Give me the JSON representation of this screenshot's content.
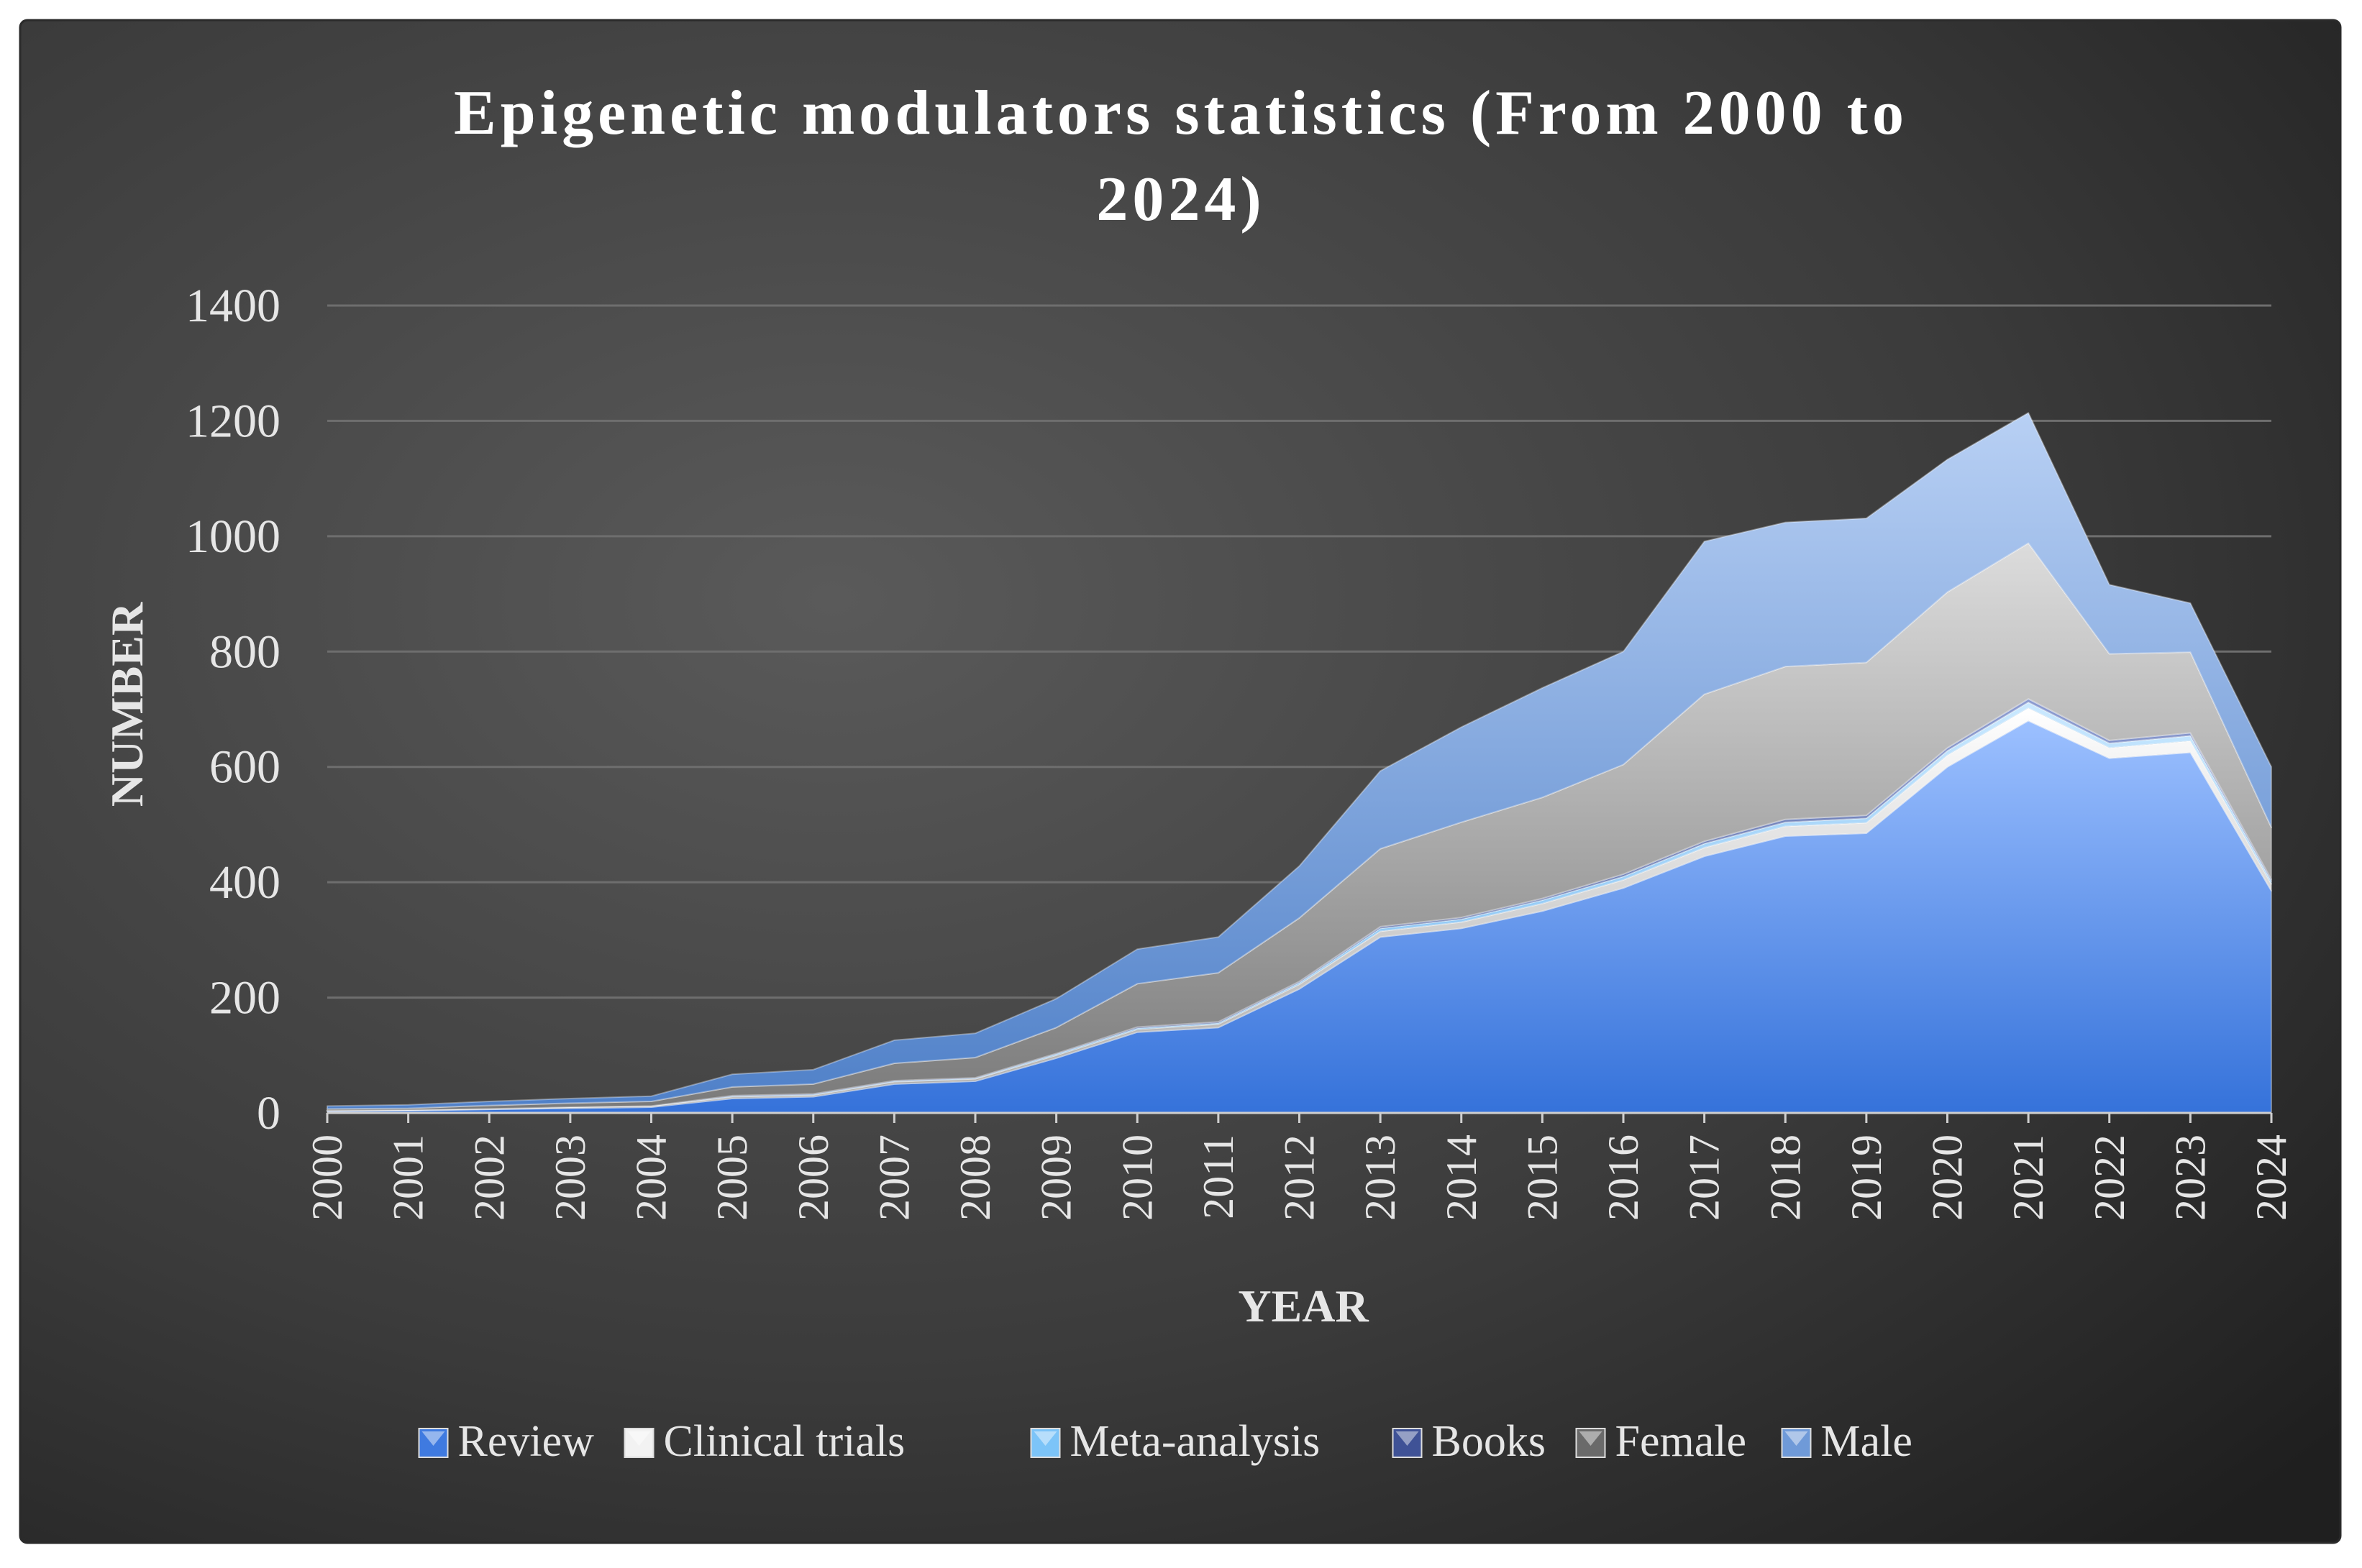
{
  "chart_data": {
    "type": "area",
    "stacked": true,
    "title": "Epigenetic modulators statistics (From 2000 to 2024)",
    "title_lines": [
      "Epigenetic modulators statistics (From 2000 to",
      "2024)"
    ],
    "xlabel": "YEAR",
    "ylabel": "NUMBER",
    "ylim": [
      0,
      1400
    ],
    "yticks": [
      "0",
      "200",
      "400",
      "600",
      "800",
      "1000",
      "1200",
      "1400"
    ],
    "categories": [
      "2000",
      "2001",
      "2002",
      "2003",
      "2004",
      "2005",
      "2006",
      "2007",
      "2008",
      "2009",
      "2010",
      "2011",
      "2012",
      "2013",
      "2014",
      "2015",
      "2016",
      "2017",
      "2018",
      "2019",
      "2020",
      "2021",
      "2022",
      "2023",
      "2024"
    ],
    "grid": true,
    "legend_position": "bottom",
    "series": [
      {
        "name": "Review",
        "color": "#4a84e8",
        "values": [
          3,
          4,
          6,
          8,
          10,
          25,
          28,
          50,
          55,
          95,
          140,
          148,
          215,
          305,
          320,
          350,
          390,
          445,
          480,
          485,
          600,
          680,
          615,
          625,
          385
        ]
      },
      {
        "name": "Clinical trials",
        "color": "#d4d4d4",
        "values": [
          1,
          1,
          1,
          2,
          2,
          3,
          3,
          4,
          4,
          5,
          5,
          6,
          8,
          10,
          11,
          13,
          14,
          15,
          17,
          18,
          20,
          22,
          18,
          20,
          12
        ]
      },
      {
        "name": "Meta-analysis",
        "color": "#7fc2f4",
        "values": [
          0,
          0,
          0,
          0,
          0,
          1,
          1,
          1,
          1,
          2,
          2,
          2,
          3,
          5,
          5,
          6,
          6,
          7,
          7,
          8,
          8,
          10,
          8,
          9,
          5
        ]
      },
      {
        "name": "Books",
        "color": "#5d6fa8",
        "values": [
          0,
          0,
          0,
          0,
          0,
          1,
          1,
          1,
          1,
          1,
          2,
          2,
          2,
          3,
          3,
          3,
          4,
          4,
          5,
          5,
          5,
          6,
          5,
          5,
          3
        ]
      },
      {
        "name": "Female",
        "color": "#9a9a9a",
        "values": [
          3,
          3,
          6,
          7,
          8,
          15,
          17,
          30,
          35,
          45,
          75,
          85,
          110,
          135,
          165,
          175,
          190,
          255,
          265,
          265,
          270,
          270,
          150,
          140,
          90
        ]
      },
      {
        "name": "Male",
        "color": "#7aa6e0",
        "values": [
          5,
          6,
          7,
          8,
          9,
          22,
          25,
          40,
          42,
          50,
          60,
          62,
          90,
          135,
          165,
          190,
          196,
          265,
          250,
          250,
          230,
          226,
          120,
          85,
          105
        ]
      }
    ]
  }
}
